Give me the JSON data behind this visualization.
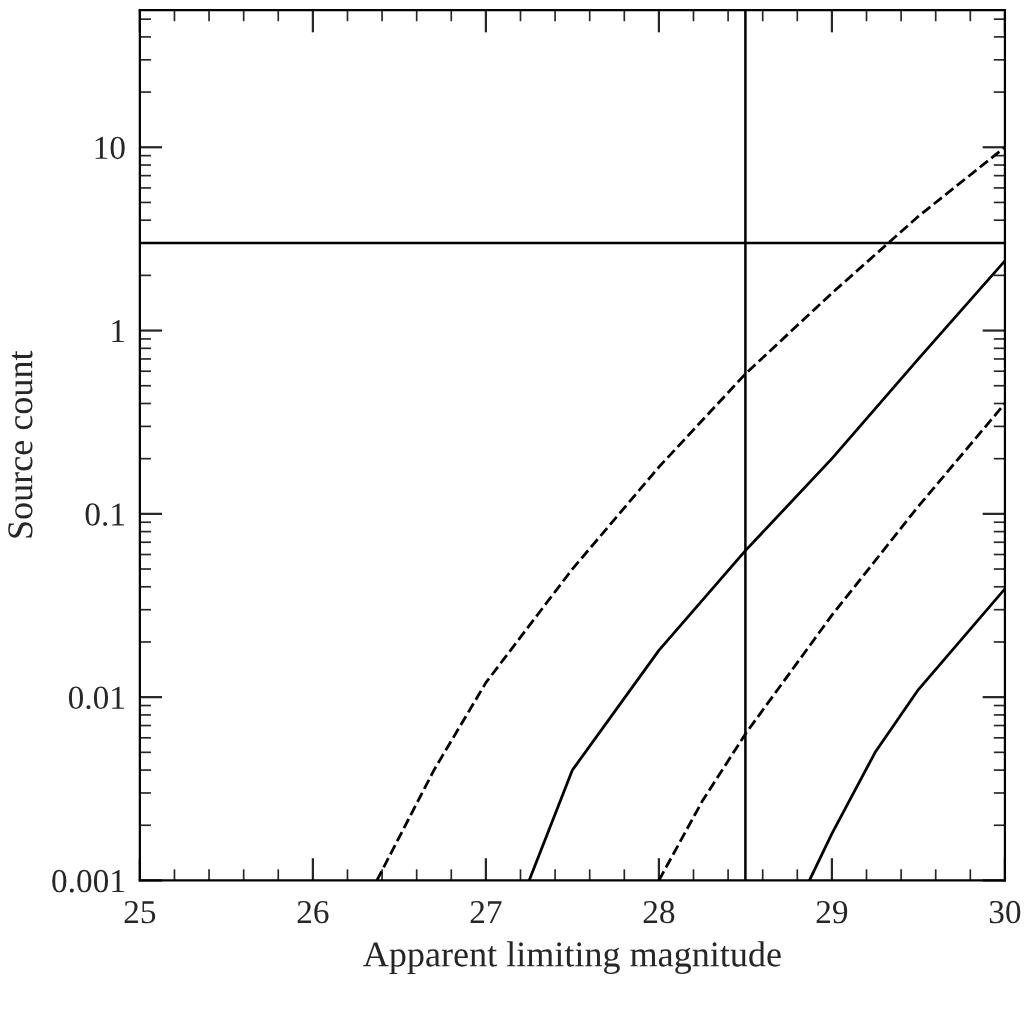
{
  "chart_data": {
    "type": "line",
    "xlabel": "Apparent limiting magnitude",
    "ylabel": "Source count",
    "log": "y",
    "xlim": [
      25,
      30
    ],
    "ylim": [
      0.001,
      56
    ],
    "xticks": [
      25,
      26,
      27,
      28,
      29,
      30
    ],
    "yticks": [
      0.001,
      0.01,
      0.1,
      1,
      10
    ],
    "grid": false,
    "legend": false,
    "marker": "none",
    "series": [
      {
        "color": "#000000",
        "line_style": "dashed",
        "x": [
          26.37,
          26.7,
          27.0,
          27.5,
          28.0,
          28.5,
          29.0,
          29.5,
          30.0
        ],
        "values": [
          0.001,
          0.004,
          0.012,
          0.05,
          0.18,
          0.58,
          1.6,
          4.2,
          10
        ]
      },
      {
        "color": "#000000",
        "line_style": "solid",
        "x": [
          27.25,
          27.5,
          28.0,
          28.5,
          29.0,
          29.5,
          30.0
        ],
        "values": [
          0.001,
          0.004,
          0.018,
          0.063,
          0.2,
          0.7,
          2.4
        ]
      },
      {
        "color": "#000000",
        "line_style": "dashed",
        "x": [
          28.0,
          28.25,
          28.5,
          29.0,
          29.5,
          30.0
        ],
        "values": [
          0.001,
          0.0027,
          0.0063,
          0.028,
          0.11,
          0.4
        ]
      },
      {
        "color": "#000000",
        "line_style": "solid",
        "x": [
          28.87,
          29.0,
          29.25,
          29.5,
          30.0
        ],
        "values": [
          0.001,
          0.0018,
          0.005,
          0.011,
          0.039
        ]
      }
    ],
    "ref_lines": [
      {
        "axis": "y",
        "value": 3,
        "color": "#000000",
        "line_style": "solid"
      },
      {
        "axis": "x",
        "value": 28.5,
        "color": "#000000",
        "line_style": "solid"
      }
    ]
  }
}
